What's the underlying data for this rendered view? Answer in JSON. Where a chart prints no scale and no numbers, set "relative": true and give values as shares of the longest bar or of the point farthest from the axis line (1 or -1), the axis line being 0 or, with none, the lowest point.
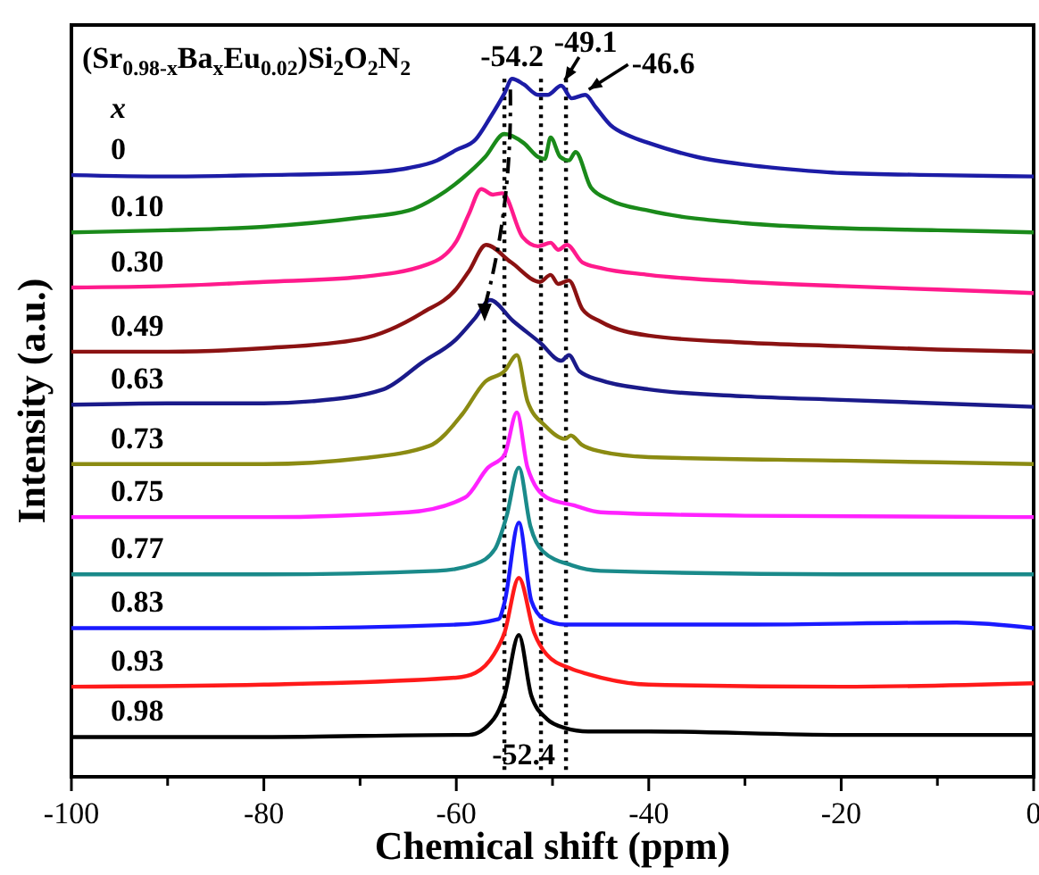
{
  "chart_data": {
    "type": "line",
    "relative": true,
    "title": "(Sr$_{0.98-x}$Ba$_{x}$Eu$_{0.02}$)Si$_{2}$O$_{2}$N$_{2}$",
    "xlabel": "Chemical shift (ppm)",
    "ylabel": "Intensity (a.u.)",
    "legend_title": "x",
    "legend": false,
    "grid": false,
    "marker": "none",
    "line_style": "solid",
    "tick_labels": "x",
    "xlim": [
      -100,
      0
    ],
    "xticks": [
      -100,
      {
        "value": -90,
        "label": null
      },
      -80,
      {
        "value": -70,
        "label": null
      },
      -60,
      {
        "value": -50,
        "label": null
      },
      -40,
      {
        "value": -30,
        "label": null
      },
      -20,
      {
        "value": -10,
        "label": null
      },
      0
    ],
    "ref_lines": [
      {
        "axis": "x",
        "value": -55.0,
        "line_style": "dotted",
        "color": "#000000"
      },
      {
        "axis": "x",
        "value": -51.2,
        "line_style": "dotted",
        "color": "#000000"
      },
      {
        "axis": "x",
        "value": -48.6,
        "line_style": "dotted",
        "color": "#000000"
      }
    ],
    "annotations": [
      {
        "text": "-54.2",
        "x": -54.2,
        "y": 1.0
      },
      {
        "text": "-49.1",
        "x": -49.1,
        "y": 0.99
      },
      {
        "text": "-46.6",
        "x": -46.6,
        "y": 0.977
      },
      "-52.4"
    ],
    "series": [
      {
        "name": "0",
        "color": "#1c1ca6",
        "x": [
          -100,
          -90,
          -80,
          -70,
          -65,
          -62,
          -60,
          -58,
          -56.5,
          -55,
          -54.2,
          -53,
          -51.5,
          -50.5,
          -49.1,
          -48,
          -46.6,
          -45.5,
          -44,
          -42,
          -40,
          -35,
          -30,
          -25,
          -20,
          -10,
          0
        ],
        "values": [
          0.862,
          0.86,
          0.862,
          0.865,
          0.872,
          0.883,
          0.898,
          0.913,
          0.944,
          0.979,
          1.0,
          0.992,
          0.977,
          0.977,
          0.99,
          0.972,
          0.977,
          0.959,
          0.934,
          0.918,
          0.908,
          0.888,
          0.877,
          0.87,
          0.865,
          0.862,
          0.86
        ]
      },
      {
        "name": "0.10",
        "color": "#1a8a1a",
        "x": [
          -100,
          -90,
          -80,
          -70,
          -65,
          -62,
          -59.4,
          -57,
          -55,
          -53,
          -51.5,
          -50.8,
          -50.2,
          -49.2,
          -48.3,
          -47.6,
          -46,
          -44,
          -40,
          -30,
          -20,
          -10,
          0
        ],
        "values": [
          0.78,
          0.783,
          0.788,
          0.801,
          0.811,
          0.831,
          0.857,
          0.888,
          0.921,
          0.908,
          0.888,
          0.885,
          0.916,
          0.888,
          0.883,
          0.895,
          0.844,
          0.826,
          0.811,
          0.793,
          0.786,
          0.783,
          0.78
        ]
      },
      {
        "name": "0.30",
        "color": "#ff1a8c",
        "x": [
          -100,
          -90,
          -80,
          -70,
          -63,
          -60,
          -58.7,
          -57.4,
          -56.2,
          -55.2,
          -53.1,
          -51.5,
          -50.2,
          -49.4,
          -48.5,
          -46.9,
          -45,
          -40,
          -30,
          -20,
          -10,
          0
        ],
        "values": [
          0.701,
          0.703,
          0.709,
          0.716,
          0.734,
          0.767,
          0.806,
          0.842,
          0.834,
          0.836,
          0.773,
          0.76,
          0.765,
          0.755,
          0.762,
          0.737,
          0.729,
          0.719,
          0.709,
          0.703,
          0.698,
          0.693
        ]
      },
      {
        "name": "0.49",
        "color": "#8b1212",
        "x": [
          -100,
          -90,
          -80,
          -70,
          -63.5,
          -60,
          -58.7,
          -56.9,
          -54.3,
          -51.3,
          -50.2,
          -49.4,
          -48.3,
          -46.9,
          -45,
          -40,
          -30,
          -20,
          -10,
          0
        ],
        "values": [
          0.609,
          0.609,
          0.614,
          0.627,
          0.665,
          0.699,
          0.724,
          0.762,
          0.737,
          0.709,
          0.719,
          0.706,
          0.711,
          0.67,
          0.652,
          0.632,
          0.622,
          0.617,
          0.612,
          0.609
        ]
      },
      {
        "name": "0.63",
        "color": "#1a1a8a",
        "x": [
          -100,
          -90,
          -80,
          -75,
          -67.6,
          -63.5,
          -60,
          -58,
          -56.5,
          -54.1,
          -51.3,
          -49.1,
          -48.3,
          -47.2,
          -45,
          -40,
          -30,
          -20,
          -10,
          0
        ],
        "values": [
          0.533,
          0.535,
          0.535,
          0.538,
          0.555,
          0.594,
          0.627,
          0.658,
          0.683,
          0.653,
          0.622,
          0.596,
          0.604,
          0.581,
          0.568,
          0.555,
          0.545,
          0.54,
          0.535,
          0.53
        ]
      },
      {
        "name": "0.73",
        "color": "#8b8b12",
        "x": [
          -100,
          -80,
          -70,
          -62.8,
          -59.4,
          -57,
          -55,
          -53.7,
          -52.6,
          -50.7,
          -48.7,
          -48.1,
          -47,
          -45,
          -40,
          -20,
          0
        ],
        "values": [
          0.448,
          0.448,
          0.456,
          0.474,
          0.519,
          0.566,
          0.581,
          0.604,
          0.538,
          0.502,
          0.484,
          0.489,
          0.476,
          0.466,
          0.458,
          0.453,
          0.448
        ]
      },
      {
        "name": "0.75",
        "color": "#ff22ff",
        "x": [
          -100,
          -80,
          -65,
          -59.1,
          -56.7,
          -55,
          -53.7,
          -52.6,
          -50.6,
          -47.8,
          -45,
          -30,
          0
        ],
        "values": [
          0.372,
          0.372,
          0.379,
          0.4,
          0.443,
          0.461,
          0.522,
          0.443,
          0.4,
          0.389,
          0.379,
          0.374,
          0.372
        ]
      },
      {
        "name": "0.77",
        "color": "#1a8a8a",
        "x": [
          -100,
          -80,
          -62,
          -58,
          -56,
          -54.8,
          -53.5,
          -52.3,
          -51,
          -48,
          -45,
          -20,
          0
        ],
        "values": [
          0.29,
          0.29,
          0.295,
          0.305,
          0.326,
          0.372,
          0.443,
          0.359,
          0.323,
          0.303,
          0.295,
          0.29,
          0.29
        ]
      },
      {
        "name": "0.83",
        "color": "#1a1aff",
        "x": [
          -100,
          -80,
          -60,
          -55.6,
          -55,
          -53.5,
          -52.2,
          -50.9,
          -48.7,
          -30,
          -8,
          0
        ],
        "values": [
          0.213,
          0.213,
          0.218,
          0.226,
          0.249,
          0.364,
          0.252,
          0.226,
          0.218,
          0.218,
          0.221,
          0.213
        ]
      },
      {
        "name": "0.93",
        "color": "#ff1a1a",
        "x": [
          -100,
          -80,
          -60,
          -58,
          -56.1,
          -55,
          -53.5,
          -51.9,
          -50.6,
          -48.1,
          -46.3,
          -40,
          -20,
          0
        ],
        "values": [
          0.129,
          0.132,
          0.142,
          0.149,
          0.175,
          0.206,
          0.285,
          0.206,
          0.175,
          0.155,
          0.147,
          0.132,
          0.129,
          0.134
        ]
      },
      {
        "name": "0.98",
        "color": "#000000",
        "x": [
          -100,
          -80,
          -60,
          -58.7,
          -56.1,
          -55,
          -53.5,
          -52.2,
          -50.6,
          -48.7,
          -46.3,
          -40,
          -20,
          0
        ],
        "values": [
          0.057,
          0.057,
          0.06,
          0.06,
          0.083,
          0.116,
          0.203,
          0.116,
          0.083,
          0.07,
          0.065,
          0.065,
          0.06,
          0.06
        ]
      }
    ]
  }
}
